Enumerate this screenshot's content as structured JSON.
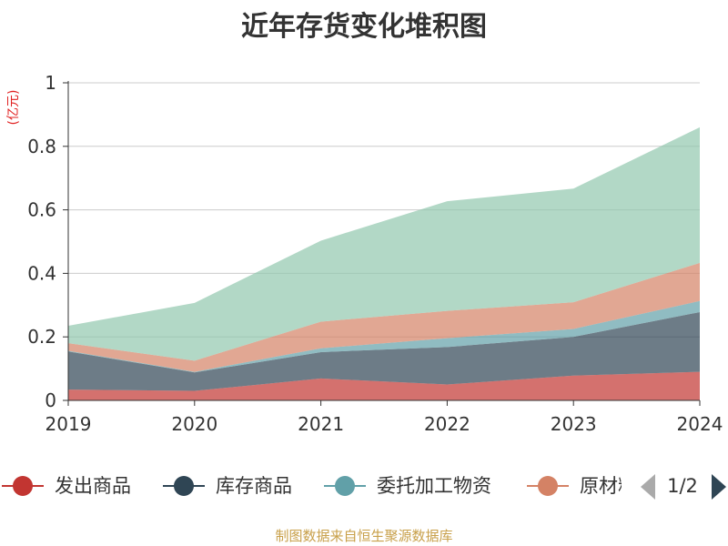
{
  "chart_data": {
    "type": "area",
    "stacked": true,
    "title": "近年存货变化堆积图",
    "ylabel": "(亿元)",
    "x": [
      "2019",
      "2020",
      "2021",
      "2022",
      "2023",
      "2024"
    ],
    "ylim": [
      0,
      1
    ],
    "yticks": [
      "0",
      "0.2",
      "0.4",
      "0.6",
      "0.8",
      "1"
    ],
    "grid": true,
    "legend_position": "bottom",
    "series": [
      {
        "name": "发出商品",
        "color": "#c23531",
        "values": [
          0.034,
          0.03,
          0.069,
          0.05,
          0.078,
          0.09
        ]
      },
      {
        "name": "库存商品",
        "color": "#2f4554",
        "values": [
          0.12,
          0.058,
          0.083,
          0.118,
          0.122,
          0.188
        ]
      },
      {
        "name": "委托加工物资",
        "color": "#61a0a8",
        "values": [
          0.002,
          0.002,
          0.012,
          0.028,
          0.025,
          0.035
        ]
      },
      {
        "name": "原材料",
        "color": "#d48265",
        "values": [
          0.024,
          0.035,
          0.084,
          0.086,
          0.084,
          0.12
        ]
      },
      {
        "name": "",
        "color": "#91c7ae",
        "values": [
          0.055,
          0.182,
          0.255,
          0.345,
          0.358,
          0.427
        ]
      }
    ],
    "legend_page": "1/2"
  },
  "footer": {
    "source": "制图数据来自恒生聚源数据库"
  }
}
